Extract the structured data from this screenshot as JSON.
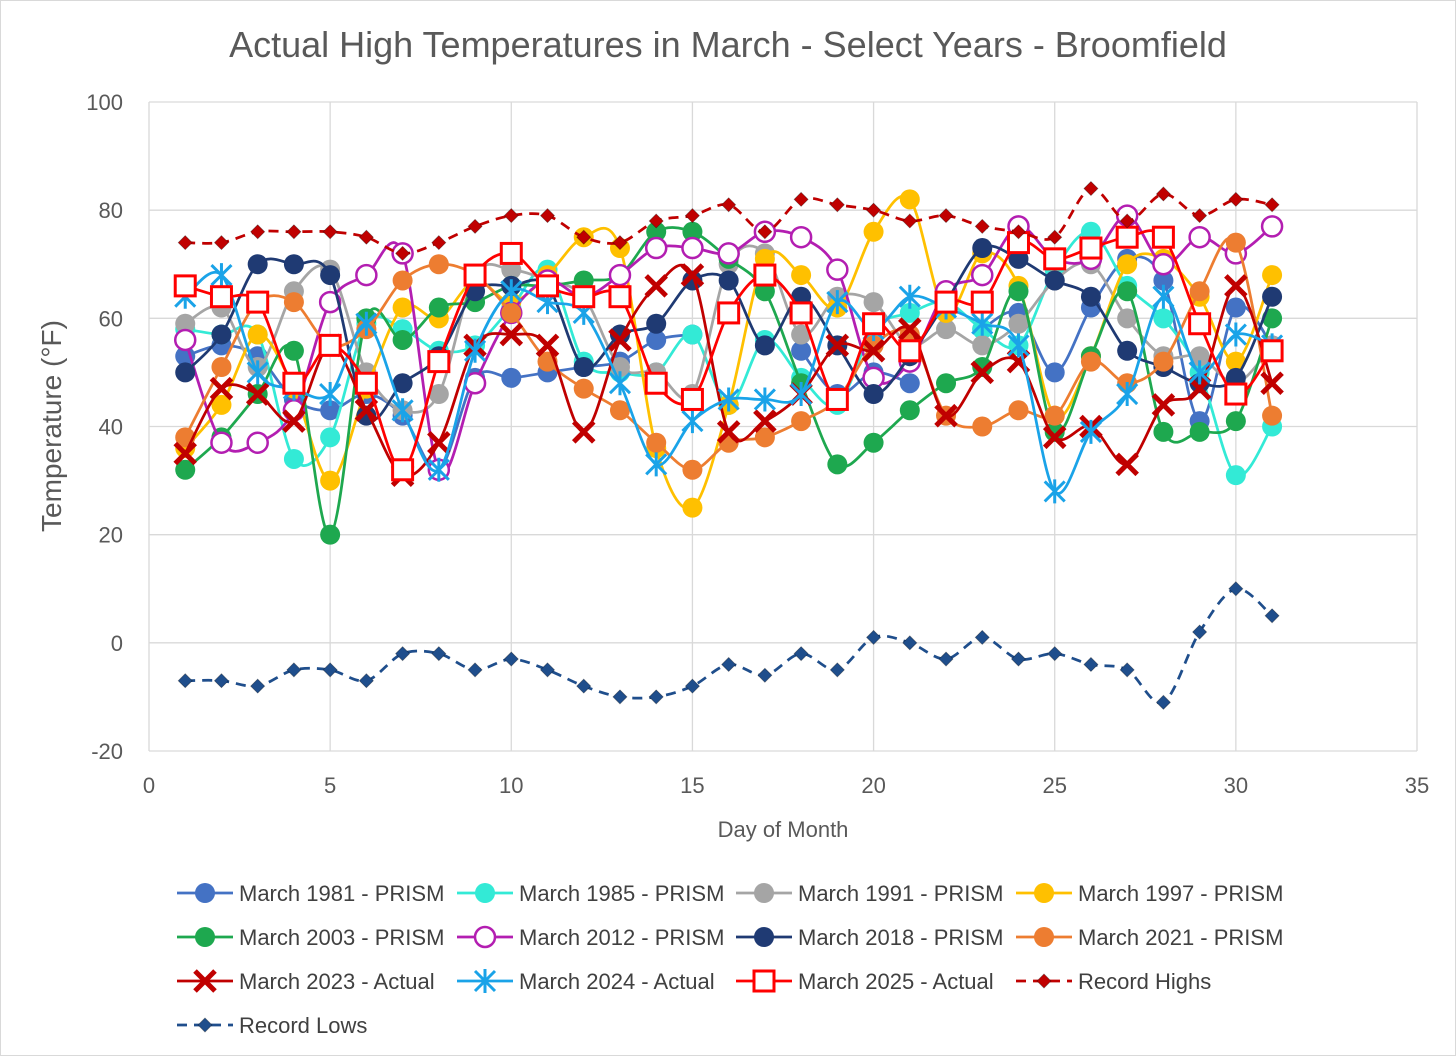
{
  "chart_data": {
    "type": "line",
    "title": "Actual High Temperatures in March - Select Years - Broomfield",
    "xlabel": "Day of Month",
    "ylabel": "Temperature (°F)",
    "xlim": [
      0,
      35
    ],
    "ylim": [
      -20,
      100
    ],
    "x_ticks": [
      0,
      5,
      10,
      15,
      20,
      25,
      30,
      35
    ],
    "y_ticks": [
      -20,
      0,
      20,
      40,
      60,
      80,
      100
    ],
    "grid": true,
    "legend_position": "bottom",
    "x": [
      1,
      2,
      3,
      4,
      5,
      6,
      7,
      8,
      9,
      10,
      11,
      12,
      13,
      14,
      15,
      16,
      17,
      18,
      19,
      20,
      21,
      22,
      23,
      24,
      25,
      26,
      27,
      28,
      29,
      30,
      31
    ],
    "series": [
      {
        "name": "March 1981 - PRISM",
        "color": "#4472c4",
        "dash": false,
        "marker": "circle",
        "values": [
          53,
          55,
          53,
          45,
          43,
          46,
          42,
          32,
          49,
          49,
          50,
          51,
          52,
          56,
          57,
          null,
          null,
          54,
          46,
          50,
          48,
          null,
          58,
          61,
          50,
          62,
          71,
          67,
          41,
          62,
          55
        ]
      },
      {
        "name": "March 1985 - PRISM",
        "color": "#33ead6",
        "dash": false,
        "marker": "circle",
        "values": [
          58,
          57,
          57,
          34,
          38,
          59,
          58,
          54,
          55,
          62,
          69,
          52,
          50,
          50,
          57,
          44,
          56,
          49,
          44,
          58,
          61,
          63,
          58,
          55,
          69,
          76,
          66,
          60,
          50,
          31,
          40
        ]
      },
      {
        "name": "March 1991 - PRISM",
        "color": "#a5a5a5",
        "dash": false,
        "marker": "circle",
        "values": [
          59,
          62,
          51,
          65,
          69,
          50,
          43,
          46,
          68,
          69,
          67,
          64,
          51,
          50,
          46,
          70,
          72,
          57,
          64,
          63,
          55,
          58,
          55,
          59,
          67,
          70,
          60,
          53,
          53,
          48,
          55
        ]
      },
      {
        "name": "March 1997 - PRISM",
        "color": "#ffc000",
        "dash": false,
        "marker": "circle",
        "values": [
          36,
          44,
          57,
          47,
          30,
          47,
          62,
          60,
          67,
          63,
          68,
          75,
          73,
          36,
          25,
          44,
          71,
          68,
          62,
          76,
          82,
          61,
          72,
          66,
          42,
          53,
          70,
          71,
          64,
          52,
          68
        ]
      },
      {
        "name": "March 2003 - PRISM",
        "color": "#1ea84f",
        "dash": false,
        "marker": "circle",
        "values": [
          32,
          38,
          46,
          54,
          20,
          60,
          56,
          62,
          63,
          66,
          66,
          67,
          68,
          76,
          76,
          71,
          65,
          48,
          33,
          37,
          43,
          48,
          51,
          65,
          39,
          53,
          65,
          39,
          39,
          41,
          60
        ]
      },
      {
        "name": "March 2012 - PRISM",
        "color": "#b31eb1",
        "dash": false,
        "marker": "ring",
        "values": [
          56,
          37,
          37,
          43,
          63,
          68,
          72,
          32,
          48,
          61,
          67,
          64,
          68,
          73,
          73,
          72,
          76,
          75,
          69,
          49,
          52,
          65,
          68,
          77,
          71,
          71,
          79,
          70,
          75,
          72,
          77
        ]
      },
      {
        "name": "March 2018 - PRISM",
        "color": "#1f3a73",
        "dash": false,
        "marker": "circle",
        "values": [
          50,
          57,
          70,
          70,
          68,
          42,
          48,
          53,
          65,
          66,
          66,
          51,
          57,
          59,
          67,
          67,
          55,
          64,
          55,
          46,
          53,
          63,
          73,
          71,
          67,
          64,
          54,
          51,
          48,
          49,
          64
        ]
      },
      {
        "name": "March 2021 - PRISM",
        "color": "#ed7d31",
        "dash": false,
        "marker": "circle",
        "values": [
          38,
          51,
          63,
          63,
          55,
          58,
          67,
          70,
          68,
          61,
          52,
          47,
          43,
          37,
          32,
          37,
          38,
          41,
          45,
          55,
          57,
          42,
          40,
          43,
          42,
          52,
          48,
          52,
          65,
          74,
          42
        ]
      },
      {
        "name": "March 2023 - Actual",
        "color": "#c00000",
        "dash": false,
        "marker": "x",
        "values": [
          35,
          47,
          46,
          41,
          55,
          43,
          31,
          37,
          55,
          57,
          55,
          39,
          56,
          66,
          68,
          39,
          41,
          46,
          55,
          54,
          58,
          42,
          50,
          52,
          38,
          40,
          33,
          44,
          47,
          66,
          48
        ]
      },
      {
        "name": "March 2024 - Actual",
        "color": "#1aa3e8",
        "dash": false,
        "marker": "star",
        "values": [
          64,
          68,
          50,
          47,
          46,
          59,
          43,
          32,
          54,
          65,
          63,
          61,
          48,
          33,
          41,
          45,
          45,
          46,
          63,
          58,
          64,
          62,
          59,
          55,
          28,
          39,
          46,
          64,
          50,
          57,
          55
        ]
      },
      {
        "name": "March 2025 - Actual",
        "color": "#ff0000",
        "dash": false,
        "marker": "square",
        "values": [
          66,
          64,
          63,
          48,
          55,
          48,
          32,
          52,
          68,
          72,
          66,
          64,
          64,
          48,
          45,
          61,
          68,
          61,
          45,
          59,
          54,
          63,
          63,
          74,
          71,
          73,
          75,
          75,
          59,
          46,
          54
        ]
      },
      {
        "name": "Record Highs",
        "color": "#c00000",
        "dash": true,
        "marker": "diamond",
        "values": [
          74,
          74,
          76,
          76,
          76,
          75,
          72,
          74,
          77,
          79,
          79,
          75,
          74,
          78,
          79,
          81,
          76,
          82,
          81,
          80,
          78,
          79,
          77,
          76,
          75,
          84,
          78,
          83,
          79,
          82,
          81
        ]
      },
      {
        "name": "Record Lows",
        "color": "#1f4e8c",
        "dash": true,
        "marker": "diamond",
        "values": [
          -7,
          -7,
          -8,
          -5,
          -5,
          -7,
          -2,
          -2,
          -5,
          -3,
          -5,
          -8,
          -10,
          -10,
          -8,
          -4,
          -6,
          -2,
          -5,
          1,
          0,
          -3,
          1,
          -3,
          -2,
          -4,
          -5,
          -11,
          2,
          10,
          5
        ]
      }
    ]
  }
}
